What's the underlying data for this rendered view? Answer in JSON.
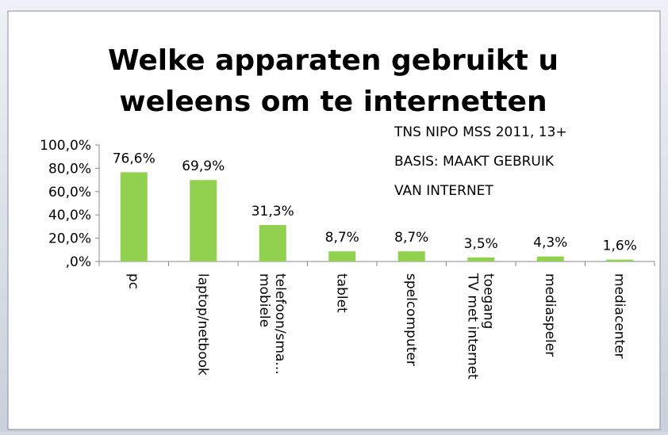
{
  "chart_data": {
    "type": "bar",
    "title": [
      "Welke apparaten gebruikt u",
      "weleens om te internetten"
    ],
    "annotation": [
      "TNS NIPO MSS 2011, 13+",
      "BASIS: MAAKT GEBRUIK",
      "VAN INTERNET"
    ],
    "categories": [
      "pc",
      "laptop/netbook",
      "mobiele telefoon/sma...",
      "tablet",
      "spelcomputer",
      "TV met internet toegang",
      "mediaspeler",
      "mediacenter"
    ],
    "values": [
      76.6,
      69.9,
      31.3,
      8.7,
      8.7,
      3.5,
      4.3,
      1.6
    ],
    "value_labels": [
      "76,6%",
      "69,9%",
      "31,3%",
      "8,7%",
      "8,7%",
      "3,5%",
      "4,3%",
      "1,6%"
    ],
    "color": "#92d050",
    "ylim": [
      0,
      100
    ],
    "yticks": [
      {
        "value": 0,
        "label": ",0%"
      },
      {
        "value": 20,
        "label": "20,0%"
      },
      {
        "value": 40,
        "label": "40,0%"
      },
      {
        "value": 60,
        "label": "60,0%"
      },
      {
        "value": 80,
        "label": "80,0%"
      },
      {
        "value": 100,
        "label": "100,0%"
      }
    ],
    "grid": false
  }
}
